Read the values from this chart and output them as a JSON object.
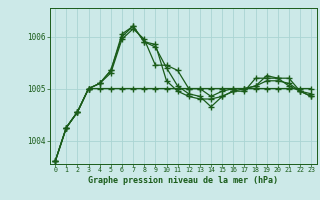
{
  "title": "Graphe pression niveau de la mer (hPa)",
  "bg_color": "#cce9e8",
  "grid_color": "#aad4d3",
  "line_color": "#1a5c1a",
  "marker_color": "#1a5c1a",
  "xlim": [
    -0.5,
    23.5
  ],
  "ylim": [
    1003.55,
    1006.55
  ],
  "yticks": [
    1004,
    1005,
    1006
  ],
  "xticks": [
    0,
    1,
    2,
    3,
    4,
    5,
    6,
    7,
    8,
    9,
    10,
    11,
    12,
    13,
    14,
    15,
    16,
    17,
    18,
    19,
    20,
    21,
    22,
    23
  ],
  "series": [
    [
      1003.6,
      1004.25,
      1004.55,
      1005.0,
      1005.0,
      1005.0,
      1005.0,
      1005.0,
      1005.0,
      1005.0,
      1005.0,
      1005.0,
      1005.0,
      1005.0,
      1005.0,
      1005.0,
      1005.0,
      1005.0,
      1005.0,
      1005.0,
      1005.0,
      1005.0,
      1005.0,
      1005.0
    ],
    [
      1003.6,
      1004.25,
      1004.55,
      1005.0,
      1005.1,
      1005.3,
      1005.95,
      1006.15,
      1005.95,
      1005.45,
      1005.45,
      1005.35,
      1005.0,
      1005.0,
      1004.85,
      1004.95,
      1005.0,
      1005.0,
      1005.05,
      1005.15,
      1005.15,
      1005.1,
      1004.95,
      1004.9
    ],
    [
      1003.6,
      1004.25,
      1004.55,
      1005.0,
      1005.1,
      1005.35,
      1006.0,
      1006.2,
      1005.9,
      1005.8,
      1005.4,
      1005.05,
      1004.9,
      1004.85,
      1004.65,
      1004.85,
      1004.95,
      1004.95,
      1005.2,
      1005.2,
      1005.2,
      1005.05,
      1004.95,
      1004.85
    ],
    [
      1003.6,
      1004.25,
      1004.55,
      1005.0,
      1005.1,
      1005.35,
      1006.05,
      1006.2,
      1005.9,
      1005.85,
      1005.15,
      1004.95,
      1004.85,
      1004.8,
      1004.8,
      1004.85,
      1004.95,
      1005.0,
      1005.05,
      1005.25,
      1005.2,
      1005.2,
      1004.95,
      1004.85
    ]
  ]
}
